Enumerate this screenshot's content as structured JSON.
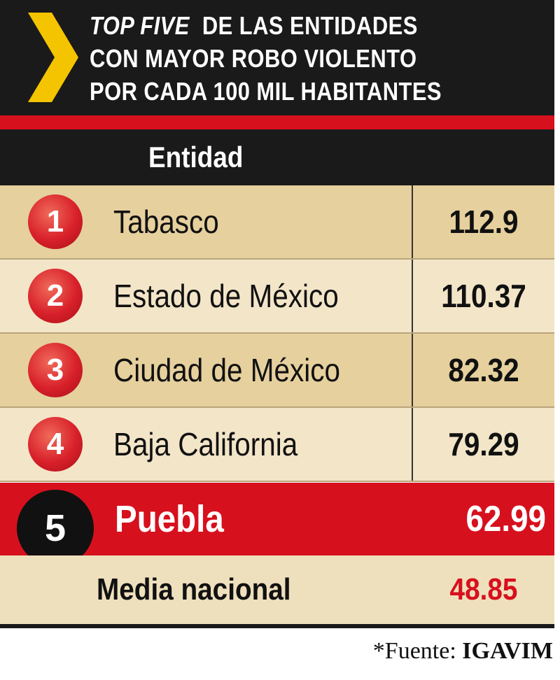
{
  "header": {
    "title_italic": "TOP FIVE",
    "title_lines": [
      "DE LAS ENTIDADES",
      "CON MAYOR ROBO VIOLENTO",
      "POR CADA 100 MIL HABITANTES"
    ]
  },
  "table": {
    "column_header": "Entidad",
    "rows": [
      {
        "rank": 1,
        "name": "Tabasco",
        "value": 112.9
      },
      {
        "rank": 2,
        "name": "Estado de México",
        "value": 110.37
      },
      {
        "rank": 3,
        "name": "Ciudad de México",
        "value": 82.32
      },
      {
        "rank": 4,
        "name": "Baja California",
        "value": 79.29
      },
      {
        "rank": 5,
        "name": "Puebla",
        "value": 62.99
      }
    ],
    "average": {
      "label": "Media nacional",
      "value": 48.85
    }
  },
  "source": {
    "label": "*Fuente:",
    "name": "IGAVIM"
  }
}
